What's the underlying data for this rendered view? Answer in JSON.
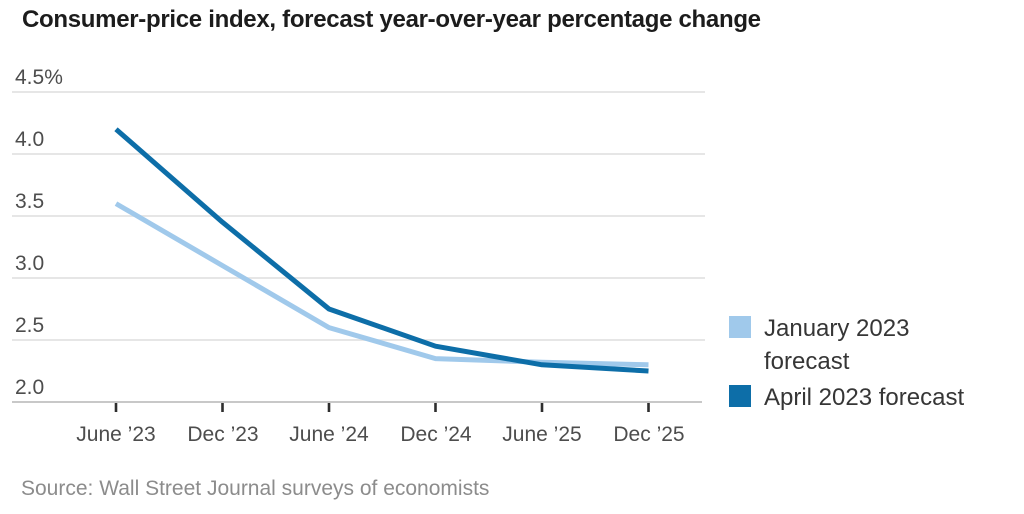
{
  "chart_data": {
    "type": "line",
    "title": "Consumer-price index, forecast year-over-year percentage change",
    "categories": [
      "June ’23",
      "Dec ’23",
      "June ’24",
      "Dec ’24",
      "June ’25",
      "Dec ’25"
    ],
    "series": [
      {
        "name": "January 2023 forecast",
        "color": "#a0c9eb",
        "values": [
          3.6,
          3.1,
          2.6,
          2.35,
          2.32,
          2.3
        ]
      },
      {
        "name": "April 2023 forecast",
        "color": "#0d6ea8",
        "values": [
          4.2,
          3.45,
          2.75,
          2.45,
          2.3,
          2.25
        ]
      }
    ],
    "xlabel": "",
    "ylabel": "",
    "ylim": [
      2.0,
      4.5
    ],
    "yticks": {
      "labels": [
        "4.5%",
        "4.0",
        "3.5",
        "3.0",
        "2.5",
        "2.0"
      ],
      "values": [
        4.5,
        4.0,
        3.5,
        3.0,
        2.5,
        2.0
      ]
    },
    "grid": "horizontal",
    "legend_position": "right"
  },
  "source": {
    "text": "Source: Wall Street Journal surveys of economists"
  },
  "colors": {
    "grid": "#e3e3e3",
    "axis": "#c8c8c8",
    "tick": "#2e2e2e"
  }
}
